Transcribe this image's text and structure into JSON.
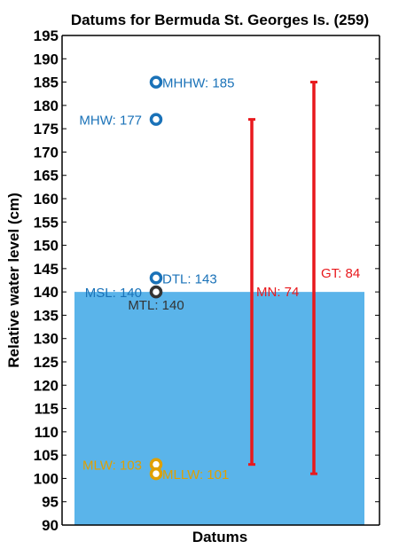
{
  "chart_data": {
    "type": "scatter",
    "title": "Datums for Bermuda St. Georges Is. (259)",
    "xlabel": "Datums",
    "ylabel": "Relative water level (cm)",
    "ylim": [
      90,
      195
    ],
    "ytick_step": 5,
    "grid": false,
    "legend": "none",
    "mean_sea_level_fill": {
      "from": 90,
      "to": 140,
      "color": "#5ab4ea"
    },
    "points": [
      {
        "name": "MHHW",
        "label": "MHHW: 185",
        "value": 185,
        "color": "#1a72b8",
        "label_side": "right"
      },
      {
        "name": "MHW",
        "label": "MHW: 177",
        "value": 177,
        "color": "#1a72b8",
        "label_side": "left"
      },
      {
        "name": "DTL",
        "label": "DTL: 143",
        "value": 143,
        "color": "#1a72b8",
        "label_side": "right"
      },
      {
        "name": "MSL",
        "label": "MSL: 140",
        "value": 140,
        "color": "#1a72b8",
        "label_side": "left"
      },
      {
        "name": "MTL",
        "label": "MTL: 140",
        "value": 140,
        "color": "#333333",
        "label_side": "below"
      },
      {
        "name": "MLW",
        "label": "MLW: 103",
        "value": 103,
        "color": "#e0a000",
        "label_side": "left"
      },
      {
        "name": "MLLW",
        "label": "MLLW: 101",
        "value": 101,
        "color": "#e0a000",
        "label_side": "right"
      }
    ],
    "ranges": [
      {
        "name": "MN",
        "label": "MN: 74",
        "from": 103,
        "to": 177,
        "color": "#e8191d"
      },
      {
        "name": "GT",
        "label": "GT: 84",
        "from": 101,
        "to": 185,
        "color": "#e8191d"
      }
    ]
  }
}
